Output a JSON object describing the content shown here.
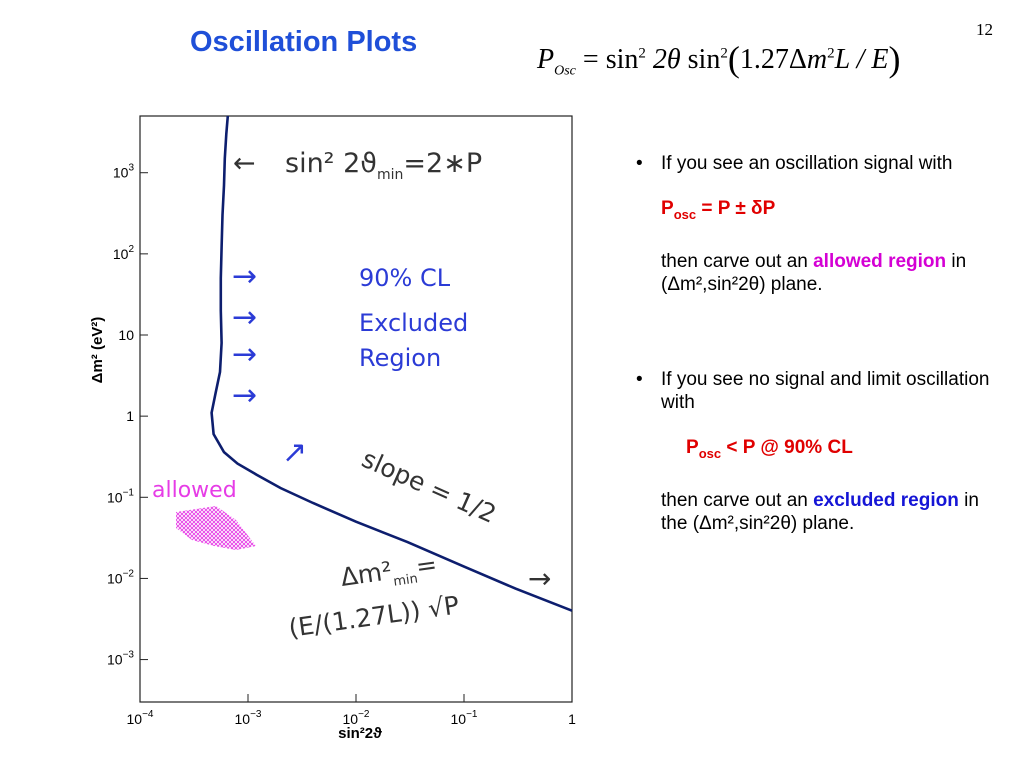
{
  "slide_number": "12",
  "title": "Oscillation Plots",
  "formula": {
    "lhs": "P",
    "lhs_sub": "Osc",
    "equals": "=",
    "sin1": "sin",
    "sup1": "2",
    "arg1": "2θ",
    "sin2": "sin",
    "sup2": "2",
    "open": "(",
    "coef": "1.27Δ",
    "m": "m",
    "sup3": "2",
    "rest": "L / E",
    "close": ")"
  },
  "chart_data": {
    "type": "line",
    "xlabel": "sin²2ϑ",
    "ylabel": "Δm² (eV²)",
    "x_scale": "log",
    "y_scale": "log",
    "xlim": [
      0.0001,
      1
    ],
    "ylim": [
      0.0003,
      5000
    ],
    "x_ticks": [
      {
        "value": 0.0001,
        "base": "10",
        "exp": "−4"
      },
      {
        "value": 0.001,
        "base": "10",
        "exp": "−3"
      },
      {
        "value": 0.01,
        "base": "10",
        "exp": "−2"
      },
      {
        "value": 0.1,
        "base": "10",
        "exp": "−1"
      },
      {
        "value": 1,
        "base": "1",
        "exp": ""
      }
    ],
    "y_ticks": [
      {
        "value": 0.001,
        "base": "10",
        "exp": "−3"
      },
      {
        "value": 0.01,
        "base": "10",
        "exp": "−2"
      },
      {
        "value": 0.1,
        "base": "10",
        "exp": "−1"
      },
      {
        "value": 1,
        "base": "1",
        "exp": ""
      },
      {
        "value": 10,
        "base": "10",
        "exp": ""
      },
      {
        "value": 100,
        "base": "10",
        "exp": "2"
      },
      {
        "value": 1000,
        "base": "10",
        "exp": "3"
      }
    ],
    "series": [
      {
        "color": "#0d1e6e",
        "points": [
          [
            0.00065,
            5000
          ],
          [
            0.00063,
            3000
          ],
          [
            0.00061,
            1500
          ],
          [
            0.0006,
            700
          ],
          [
            0.00058,
            300
          ],
          [
            0.00057,
            120
          ],
          [
            0.00056,
            50
          ],
          [
            0.00056,
            20
          ],
          [
            0.00057,
            8
          ],
          [
            0.00055,
            3.5
          ],
          [
            0.0005,
            1.9
          ],
          [
            0.00046,
            1.1
          ],
          [
            0.00048,
            0.6
          ],
          [
            0.0006,
            0.36
          ],
          [
            0.0008,
            0.26
          ],
          [
            0.0012,
            0.19
          ],
          [
            0.002,
            0.13
          ],
          [
            0.004,
            0.085
          ],
          [
            0.01,
            0.05
          ],
          [
            0.03,
            0.028
          ],
          [
            0.1,
            0.014
          ],
          [
            0.3,
            0.0075
          ],
          [
            1,
            0.004
          ]
        ]
      }
    ],
    "annotations": {
      "top_label": "sin² 2ϑ",
      "top_label_sub": "min",
      "top_label_rest": "=2∗P",
      "cl": "90% CL",
      "excluded": "Excluded",
      "region": "Region",
      "allowed": "allowed",
      "slope": "slope = 1/2",
      "dm_min": "Δm²",
      "dm_min_sub": "min",
      "dm_min_rest": "=",
      "dm_formula": "(E/(1.27L)) √P",
      "arrow": "→",
      "diag_arrow": "↗",
      "left_arrow": "←"
    },
    "colors": {
      "annotation": "#2b3bd6",
      "curve": "#0d1e6e",
      "allowed": "#e63ce6"
    }
  },
  "bullets": {
    "b1": {
      "line": "If you see an oscillation signal with",
      "measure_p": "P",
      "measure_sub": "osc",
      "measure_rest": " = P  ±  δP",
      "carve": "then carve out an ",
      "allowed": "allowed region",
      "rest": " in (Δm²,sin²2θ) plane."
    },
    "b2": {
      "line": "If you see no signal and limit oscillation with",
      "limit_p": "P",
      "limit_sub": "osc",
      "limit_rest": " < P  @ 90% CL",
      "carve": "then carve out an ",
      "excluded": "excluded region",
      "rest": " in the (Δm²,sin²2θ) plane."
    },
    "marker": "•"
  }
}
